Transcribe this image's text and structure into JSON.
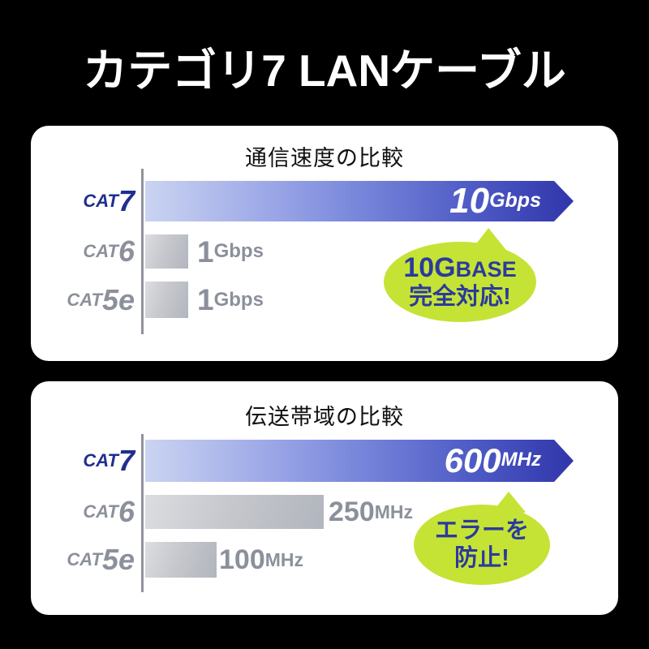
{
  "title": "カテゴリ7 LANケーブル",
  "colors": {
    "background": "#000000",
    "panel": "#ffffff",
    "bar_blue_start": "#cbd4f1",
    "bar_blue_end": "#3036aa",
    "bar_gray_start": "#dcdde1",
    "bar_gray_end": "#b1b5bd",
    "cat7_label": "#202f8e",
    "gray_label": "#8b909b",
    "bubble_green": "#c5e335",
    "bubble_text_blue": "#2b3a9e",
    "axis_gray": "#8f939b"
  },
  "panels": [
    {
      "title": "通信速度の比較",
      "rows": [
        {
          "cat": "CAT",
          "num": "7",
          "value": "10",
          "unit": "Gbps"
        },
        {
          "cat": "CAT",
          "num": "6",
          "value": "1",
          "unit": "Gbps"
        },
        {
          "cat": "CAT",
          "num": "5e",
          "value": "1",
          "unit": "Gbps"
        }
      ],
      "bubble": {
        "part1": "10G",
        "part2": "BASE",
        "line2": "完全対応!"
      }
    },
    {
      "title": "伝送帯域の比較",
      "rows": [
        {
          "cat": "CAT",
          "num": "7",
          "value": "600",
          "unit": "MHz"
        },
        {
          "cat": "CAT",
          "num": "6",
          "value": "250",
          "unit": "MHz"
        },
        {
          "cat": "CAT",
          "num": "5e",
          "value": "100",
          "unit": "MHz"
        }
      ],
      "bubble": {
        "part1": "エラーを",
        "part2": "",
        "line2": "防止!"
      }
    }
  ],
  "chart_data": [
    {
      "type": "bar",
      "orientation": "horizontal",
      "title": "通信速度の比較",
      "categories": [
        "CAT7",
        "CAT6",
        "CAT5e"
      ],
      "values": [
        10,
        1,
        1
      ],
      "unit": "Gbps",
      "value_labels": [
        "10Gbps",
        "1Gbps",
        "1Gbps"
      ],
      "xlim": [
        0,
        10
      ],
      "grid": false,
      "legend": "none",
      "annotation": "10GBASE 完全対応!",
      "highlight_category": "CAT7"
    },
    {
      "type": "bar",
      "orientation": "horizontal",
      "title": "伝送帯域の比較",
      "categories": [
        "CAT7",
        "CAT6",
        "CAT5e"
      ],
      "values": [
        600,
        250,
        100
      ],
      "unit": "MHz",
      "value_labels": [
        "600MHz",
        "250MHz",
        "100MHz"
      ],
      "xlim": [
        0,
        600
      ],
      "grid": false,
      "legend": "none",
      "annotation": "エラーを 防止!",
      "highlight_category": "CAT7"
    }
  ]
}
